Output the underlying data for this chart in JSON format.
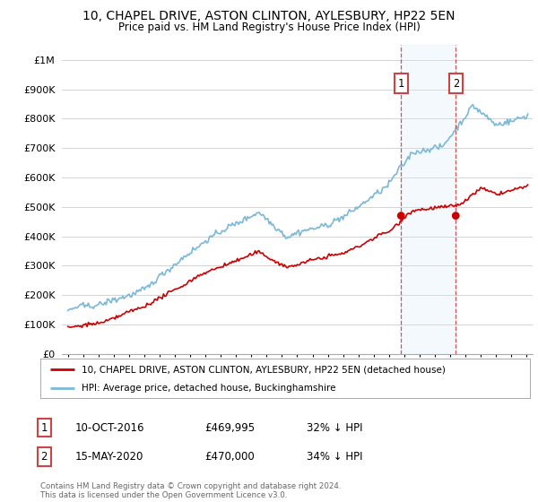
{
  "title": "10, CHAPEL DRIVE, ASTON CLINTON, AYLESBURY, HP22 5EN",
  "subtitle": "Price paid vs. HM Land Registry's House Price Index (HPI)",
  "legend_line1": "10, CHAPEL DRIVE, ASTON CLINTON, AYLESBURY, HP22 5EN (detached house)",
  "legend_line2": "HPI: Average price, detached house, Buckinghamshire",
  "footnote": "Contains HM Land Registry data © Crown copyright and database right 2024.\nThis data is licensed under the Open Government Licence v3.0.",
  "transaction1_date": "10-OCT-2016",
  "transaction1_price": "£469,995",
  "transaction1_hpi": "32% ↓ HPI",
  "transaction1_x": 2016.79,
  "transaction1_y": 469995,
  "transaction2_date": "15-MAY-2020",
  "transaction2_price": "£470,000",
  "transaction2_hpi": "34% ↓ HPI",
  "transaction2_x": 2020.37,
  "transaction2_y": 470000,
  "hpi_color": "#7ab8d9",
  "price_color": "#cc0000",
  "dashed_line_color": "#cc4444",
  "span_color": "#d6eaf8",
  "ylim": [
    0,
    1050000
  ],
  "yticks": [
    0,
    100000,
    200000,
    300000,
    400000,
    500000,
    600000,
    700000,
    800000,
    900000,
    1000000
  ],
  "xlim_start": 1994.6,
  "xlim_end": 2025.4,
  "background_color": "#ffffff",
  "grid_color": "#cccccc"
}
